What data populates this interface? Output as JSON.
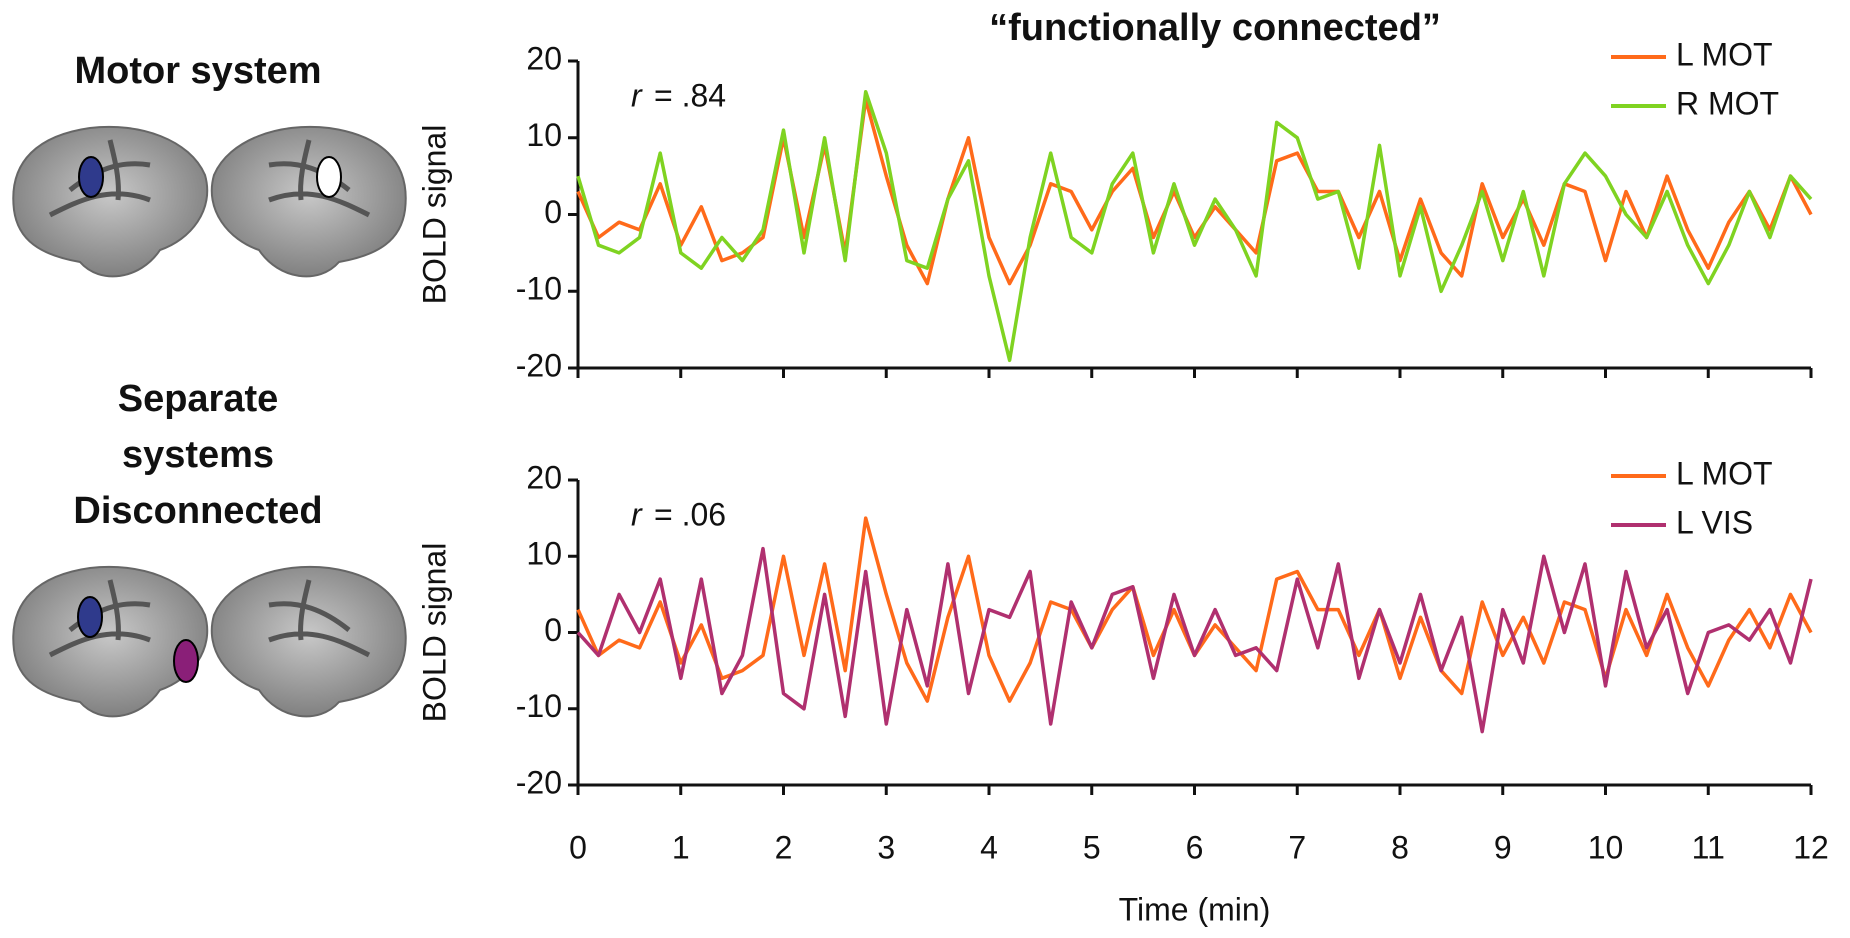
{
  "chart_data": [
    {
      "type": "line",
      "title": "“functionally connected”",
      "panel_label": [
        "Motor system"
      ],
      "annotation": {
        "variable": "r",
        "text": "= .84"
      },
      "ylabel": "BOLD signal",
      "ylim": [
        -20,
        20
      ],
      "yticks": [
        -20,
        -10,
        0,
        10,
        20
      ],
      "xlim": [
        0,
        12
      ],
      "x": [
        0,
        0.2,
        0.4,
        0.6,
        0.8,
        1,
        1.2,
        1.4,
        1.6,
        1.8,
        2,
        2.2,
        2.4,
        2.6,
        2.8,
        3,
        3.2,
        3.4,
        3.6,
        3.8,
        4,
        4.2,
        4.4,
        4.6,
        4.8,
        5,
        5.2,
        5.4,
        5.6,
        5.8,
        6,
        6.2,
        6.4,
        6.6,
        6.8,
        7,
        7.2,
        7.4,
        7.6,
        7.8,
        8,
        8.2,
        8.4,
        8.6,
        8.8,
        9,
        9.2,
        9.4,
        9.6,
        9.8,
        10,
        10.2,
        10.4,
        10.6,
        10.8,
        11,
        11.2,
        11.4,
        11.6,
        11.8,
        12
      ],
      "legend": "upper right",
      "series": [
        {
          "name": "L MOT",
          "color": "#ff6a1a",
          "values": [
            3,
            -3,
            -1,
            -2,
            4,
            -4,
            1,
            -6,
            -5,
            -3,
            10,
            -3,
            9,
            -5,
            15,
            5,
            -4,
            -9,
            2,
            10,
            -3,
            -9,
            -4,
            4,
            3,
            -2,
            3,
            6,
            -3,
            3,
            -3,
            1,
            -2,
            -5,
            7,
            8,
            3,
            3,
            -3,
            3,
            -6,
            2,
            -5,
            -8,
            4,
            -3,
            2,
            -4,
            4,
            3,
            -6,
            3,
            -3,
            5,
            -2,
            -7,
            -1,
            3,
            -2,
            5,
            0
          ]
        },
        {
          "name": "R MOT",
          "color": "#7fd321",
          "values": [
            5,
            -4,
            -5,
            -3,
            8,
            -5,
            -7,
            -3,
            -6,
            -2,
            11,
            -5,
            10,
            -6,
            16,
            8,
            -6,
            -7,
            2,
            7,
            -8,
            -19,
            -3,
            8,
            -3,
            -5,
            4,
            8,
            -5,
            4,
            -4,
            2,
            -2,
            -8,
            12,
            10,
            2,
            3,
            -7,
            9,
            -8,
            1,
            -10,
            -4,
            3,
            -6,
            3,
            -8,
            4,
            8,
            5,
            0,
            -3,
            3,
            -4,
            -9,
            -4,
            3,
            -3,
            5,
            2
          ]
        }
      ]
    },
    {
      "type": "line",
      "panel_label": [
        "Separate",
        "systems",
        "Disconnected"
      ],
      "annotation": {
        "variable": "r",
        "text": "= .06"
      },
      "ylabel": "BOLD signal",
      "xlabel": "Time (min)",
      "ylim": [
        -20,
        20
      ],
      "yticks": [
        -20,
        -10,
        0,
        10,
        20
      ],
      "xlim": [
        0,
        12
      ],
      "xticks": [
        0,
        1,
        2,
        3,
        4,
        5,
        6,
        7,
        8,
        9,
        10,
        11,
        12
      ],
      "x": [
        0,
        0.2,
        0.4,
        0.6,
        0.8,
        1,
        1.2,
        1.4,
        1.6,
        1.8,
        2,
        2.2,
        2.4,
        2.6,
        2.8,
        3,
        3.2,
        3.4,
        3.6,
        3.8,
        4,
        4.2,
        4.4,
        4.6,
        4.8,
        5,
        5.2,
        5.4,
        5.6,
        5.8,
        6,
        6.2,
        6.4,
        6.6,
        6.8,
        7,
        7.2,
        7.4,
        7.6,
        7.8,
        8,
        8.2,
        8.4,
        8.6,
        8.8,
        9,
        9.2,
        9.4,
        9.6,
        9.8,
        10,
        10.2,
        10.4,
        10.6,
        10.8,
        11,
        11.2,
        11.4,
        11.6,
        11.8,
        12
      ],
      "legend": "upper right",
      "series": [
        {
          "name": "L MOT",
          "color": "#ff6a1a",
          "values": [
            3,
            -3,
            -1,
            -2,
            4,
            -4,
            1,
            -6,
            -5,
            -3,
            10,
            -3,
            9,
            -5,
            15,
            5,
            -4,
            -9,
            2,
            10,
            -3,
            -9,
            -4,
            4,
            3,
            -2,
            3,
            6,
            -3,
            3,
            -3,
            1,
            -2,
            -5,
            7,
            8,
            3,
            3,
            -3,
            3,
            -6,
            2,
            -5,
            -8,
            4,
            -3,
            2,
            -4,
            4,
            3,
            -6,
            3,
            -3,
            5,
            -2,
            -7,
            -1,
            3,
            -2,
            5,
            0
          ]
        },
        {
          "name": "L VIS",
          "color": "#b0306f",
          "values": [
            0,
            -3,
            5,
            0,
            7,
            -6,
            7,
            -8,
            -3,
            11,
            -8,
            -10,
            5,
            -11,
            8,
            -12,
            3,
            -7,
            9,
            -8,
            3,
            2,
            8,
            -12,
            4,
            -2,
            5,
            6,
            -6,
            5,
            -3,
            3,
            -3,
            -2,
            -5,
            7,
            -2,
            9,
            -6,
            3,
            -4,
            5,
            -5,
            2,
            -13,
            3,
            -4,
            10,
            0,
            9,
            -7,
            8,
            -2,
            3,
            -8,
            0,
            1,
            -1,
            3,
            -4,
            7
          ]
        }
      ]
    }
  ]
}
